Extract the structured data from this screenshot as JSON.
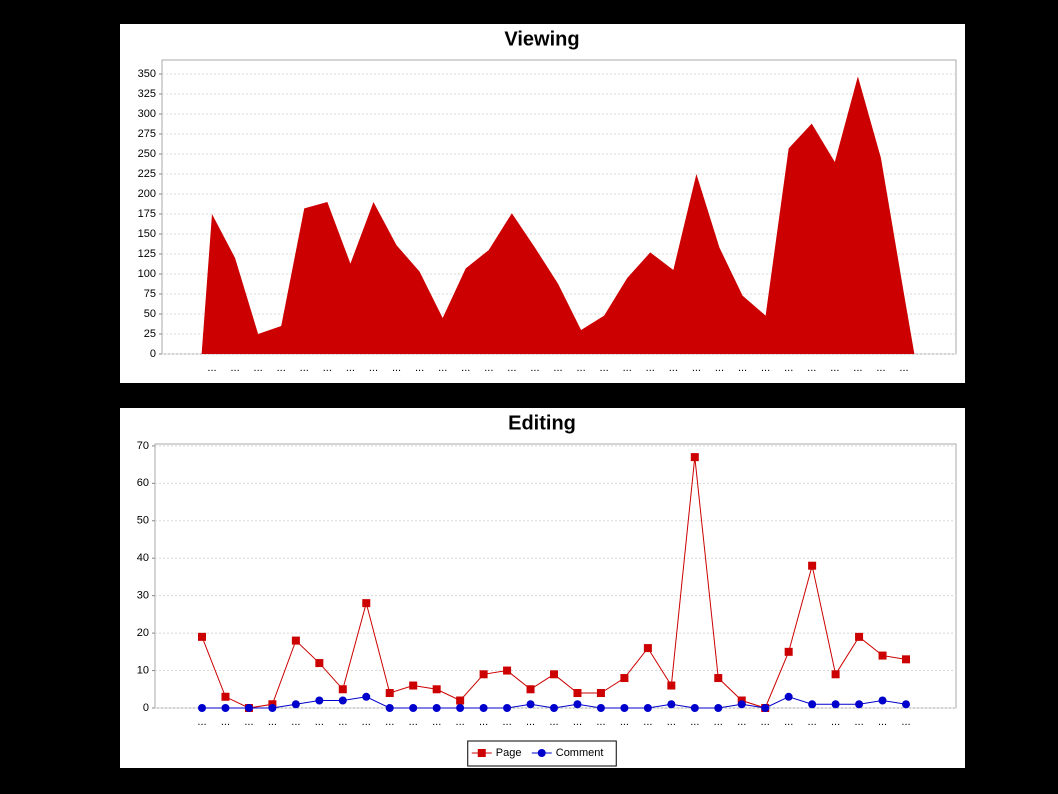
{
  "chart_data": [
    {
      "type": "area",
      "title": "Viewing",
      "color": "#cc0000",
      "grid": true,
      "categories": [
        "...",
        "...",
        "...",
        "...",
        "...",
        "...",
        "...",
        "...",
        "...",
        "...",
        "...",
        "...",
        "...",
        "...",
        "...",
        "...",
        "...",
        "...",
        "...",
        "...",
        "...",
        "...",
        "...",
        "...",
        "...",
        "...",
        "...",
        "...",
        "...",
        "...",
        "..."
      ],
      "values": [
        175,
        120,
        25,
        35,
        182,
        190,
        113,
        190,
        136,
        103,
        45,
        107,
        130,
        176,
        133,
        88,
        30,
        48,
        95,
        127,
        105,
        225,
        133,
        73,
        48,
        257,
        288,
        240,
        347,
        245,
        75
      ],
      "ylim": [
        0,
        367.5
      ],
      "yticks": [
        0,
        25,
        50,
        75,
        100,
        125,
        150,
        175,
        200,
        225,
        250,
        275,
        300,
        325,
        350
      ]
    },
    {
      "type": "line",
      "title": "Editing",
      "grid": true,
      "legend": "bottom",
      "categories": [
        "...",
        "...",
        "...",
        "...",
        "...",
        "...",
        "...",
        "...",
        "...",
        "...",
        "...",
        "...",
        "...",
        "...",
        "...",
        "...",
        "...",
        "...",
        "...",
        "...",
        "...",
        "...",
        "...",
        "...",
        "...",
        "...",
        "...",
        "...",
        "...",
        "...",
        "..."
      ],
      "series": [
        {
          "name": "Page",
          "color": "#cc0000",
          "marker": "square",
          "values": [
            19,
            3,
            0,
            1,
            18,
            12,
            5,
            28,
            4,
            6,
            5,
            2,
            9,
            10,
            5,
            9,
            4,
            4,
            8,
            16,
            6,
            67,
            8,
            2,
            0,
            15,
            38,
            9,
            19,
            14,
            13
          ]
        },
        {
          "name": "Comment",
          "color": "#0000cc",
          "marker": "circle",
          "values": [
            0,
            0,
            0,
            0,
            1,
            2,
            2,
            3,
            0,
            0,
            0,
            0,
            0,
            0,
            1,
            0,
            1,
            0,
            0,
            0,
            1,
            0,
            0,
            1,
            0,
            3,
            1,
            1,
            1,
            2,
            1
          ]
        }
      ],
      "ylim": [
        0,
        70.5
      ],
      "yticks": [
        0,
        10,
        20,
        30,
        40,
        50,
        60,
        70
      ]
    }
  ]
}
